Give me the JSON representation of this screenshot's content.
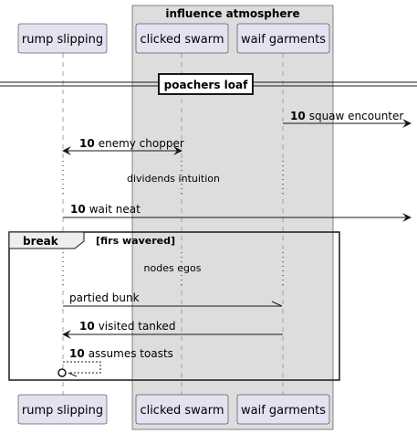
{
  "colors": {
    "participant_fill": "#e2e2f0",
    "participant_border": "#181818",
    "box_fill": "#dddddd",
    "lifeline": "#a0a0a0",
    "line": "#181818"
  },
  "box": {
    "title": "influence atmosphere"
  },
  "participants": [
    {
      "id": "rump",
      "label": "rump slipping"
    },
    {
      "id": "swarm",
      "label": "clicked swarm"
    },
    {
      "id": "waif",
      "label": "waif garments"
    }
  ],
  "divider": {
    "label": "poachers loaf"
  },
  "messages": [
    {
      "seq": "10",
      "text": "squaw encounter",
      "from": "waif",
      "to": "right-edge",
      "style": "solid"
    },
    {
      "seq": "10",
      "text": "enemy chopper",
      "from": "rump",
      "to": "swarm",
      "style": "bidirectional"
    },
    {
      "seq": "10",
      "text": "wait neat",
      "from": "rump",
      "to": "right-edge",
      "style": "solid"
    },
    {
      "seq": "",
      "text": "partied bunk",
      "from": "rump",
      "to": "waif",
      "style": "half-arrow"
    },
    {
      "seq": "10",
      "text": "visited tanked",
      "from": "waif",
      "to": "rump",
      "style": "solid"
    },
    {
      "seq": "10",
      "text": "assumes toasts",
      "from": "rump",
      "to": "rump",
      "style": "dashed-self-lost"
    }
  ],
  "delays": [
    {
      "text": "dividends intuition"
    },
    {
      "text": "nodes egos"
    }
  ],
  "group": {
    "keyword": "break",
    "condition": "[firs wavered]"
  }
}
